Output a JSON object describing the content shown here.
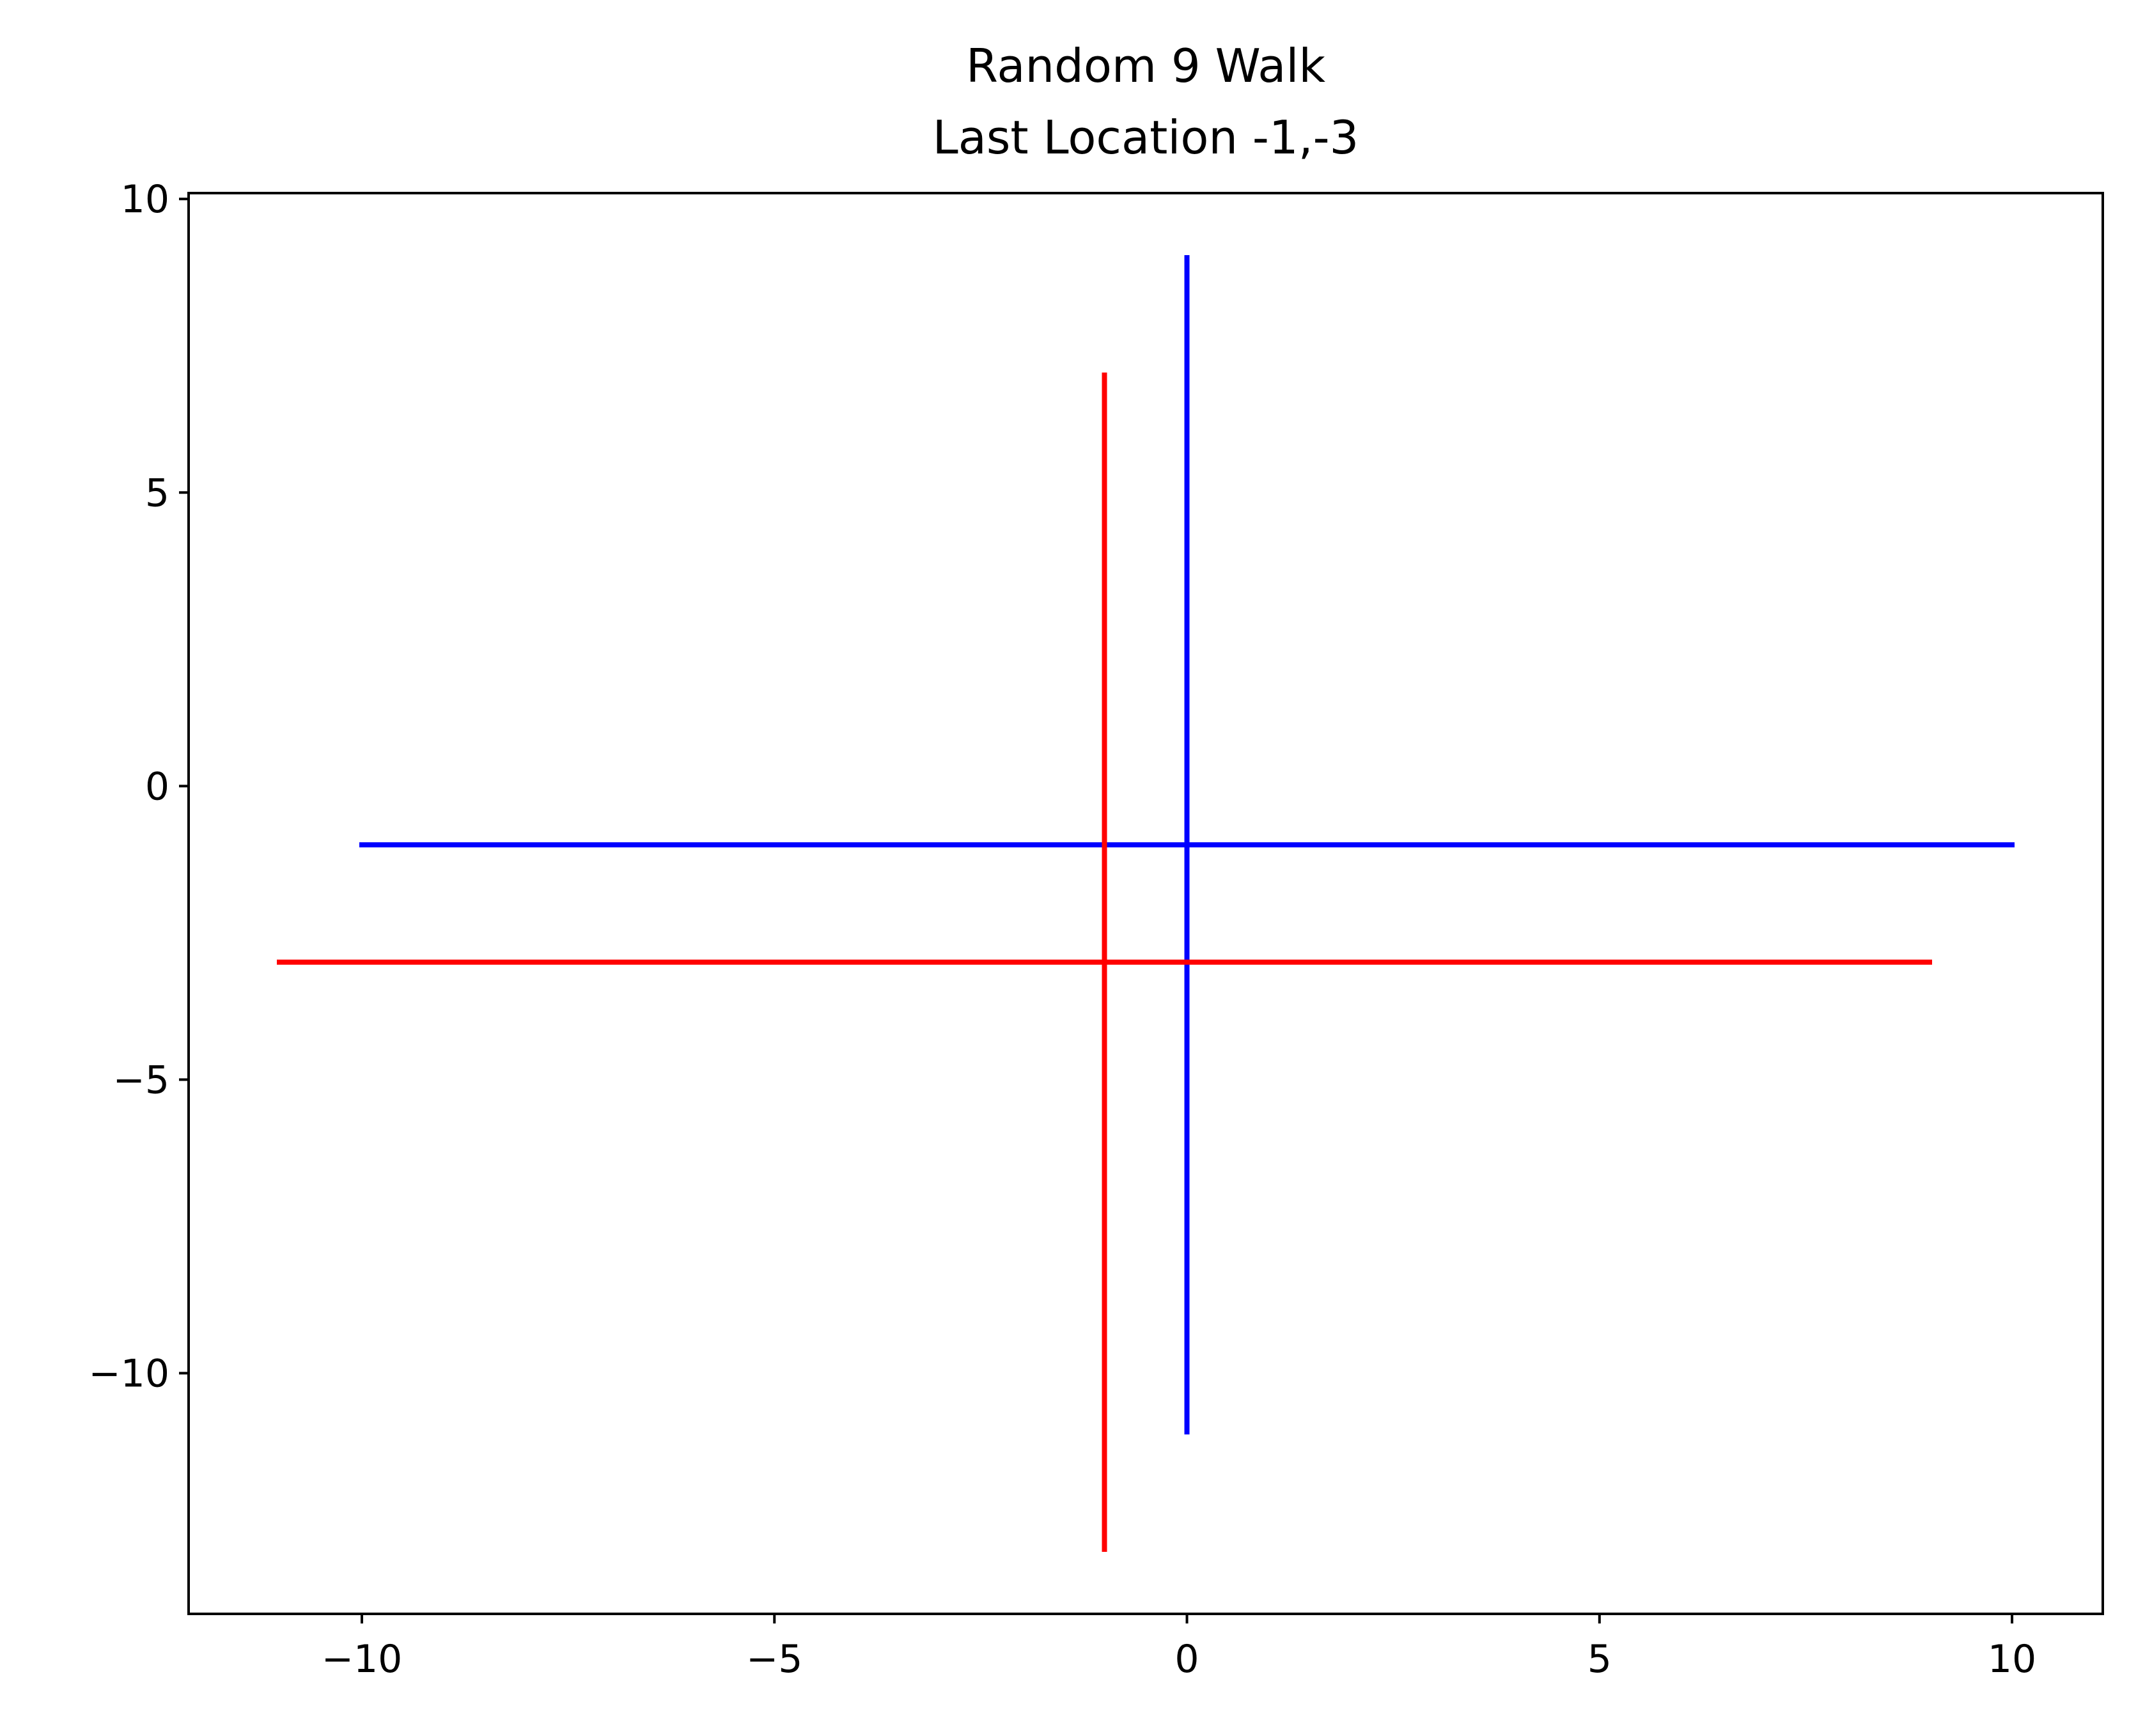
{
  "chart_data": {
    "type": "line",
    "title": "Random 9 Walk",
    "subtitle": "Last Location -1,-3",
    "xlabel": "",
    "ylabel": "",
    "xlim": [
      -12.1,
      11.1
    ],
    "ylim": [
      -14.1,
      10.1
    ],
    "x_ticks": [
      -10,
      -5,
      0,
      5,
      10
    ],
    "x_tick_labels": [
      "−10",
      "−5",
      "0",
      "5",
      "10"
    ],
    "y_ticks": [
      10,
      5,
      0,
      -5,
      -10
    ],
    "y_tick_labels": [
      "10",
      "5",
      "0",
      "−5",
      "−10"
    ],
    "grid": false,
    "series": [
      {
        "color": "#0000ff",
        "segments": [
          {
            "x": [
              0,
              0
            ],
            "y": [
              9,
              -11
            ]
          },
          {
            "x": [
              -10,
              10
            ],
            "y": [
              -1,
              -1
            ]
          }
        ]
      },
      {
        "color": "#ff0000",
        "segments": [
          {
            "x": [
              -1,
              -1
            ],
            "y": [
              7,
              -13
            ]
          },
          {
            "x": [
              -11,
              9
            ],
            "y": [
              -3,
              -3
            ]
          }
        ]
      }
    ]
  }
}
